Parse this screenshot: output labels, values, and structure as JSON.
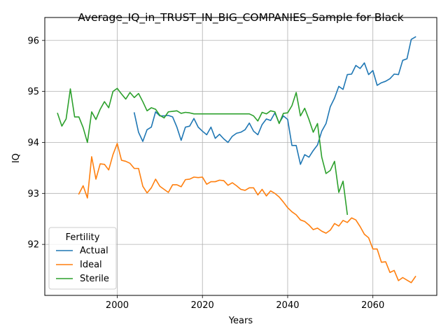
{
  "chart_data": {
    "type": "line",
    "title": "Average_IQ_in_TRUST_IN_BIG_COMPANIES_Sample for Black",
    "xlabel": "Years",
    "ylabel": "IQ",
    "xlim": [
      1983,
      2075
    ],
    "ylim": [
      91.0,
      96.45
    ],
    "xticks": [
      2000,
      2020,
      2040,
      2060
    ],
    "yticks": [
      92,
      93,
      94,
      95,
      96
    ],
    "grid": true,
    "legend": {
      "title": "Fertility",
      "placement": "lower-left"
    },
    "series": [
      {
        "name": "Actual",
        "color": "#1f77b4",
        "x": [
          2004,
          2005,
          2006,
          2007,
          2008,
          2009,
          2010,
          2011,
          2012,
          2013,
          2014,
          2015,
          2016,
          2017,
          2018,
          2019,
          2020,
          2021,
          2022,
          2023,
          2024,
          2025,
          2026,
          2027,
          2028,
          2029,
          2030,
          2031,
          2032,
          2033,
          2034,
          2035,
          2036,
          2037,
          2038,
          2039,
          2040,
          2041,
          2042,
          2043,
          2044,
          2045,
          2046,
          2047,
          2048,
          2049,
          2050,
          2051,
          2052,
          2053,
          2054,
          2055,
          2056,
          2057,
          2058,
          2059,
          2060,
          2061,
          2062,
          2063,
          2064,
          2065,
          2066,
          2067,
          2068,
          2069,
          2070
        ],
        "values": [
          94.58,
          94.2,
          94.02,
          94.25,
          94.3,
          94.6,
          94.52,
          94.52,
          94.53,
          94.5,
          94.3,
          94.04,
          94.3,
          94.32,
          94.47,
          94.3,
          94.22,
          94.15,
          94.3,
          94.08,
          94.16,
          94.07,
          94.0,
          94.12,
          94.18,
          94.2,
          94.25,
          94.38,
          94.22,
          94.15,
          94.35,
          94.46,
          94.43,
          94.58,
          94.38,
          94.52,
          94.45,
          93.94,
          93.94,
          93.57,
          93.76,
          93.71,
          93.84,
          93.95,
          94.22,
          94.37,
          94.7,
          94.87,
          95.1,
          95.04,
          95.33,
          95.34,
          95.51,
          95.45,
          95.56,
          95.33,
          95.41,
          95.12,
          95.17,
          95.2,
          95.25,
          95.34,
          95.33,
          95.61,
          95.64,
          96.02,
          96.07
        ]
      },
      {
        "name": "Ideal",
        "color": "#ff7f0e",
        "x": [
          1991,
          1992,
          1993,
          1994,
          1995,
          1996,
          1997,
          1998,
          1999,
          2000,
          2001,
          2002,
          2003,
          2004,
          2005,
          2006,
          2007,
          2008,
          2009,
          2010,
          2011,
          2012,
          2013,
          2014,
          2015,
          2016,
          2017,
          2018,
          2019,
          2020,
          2021,
          2022,
          2023,
          2024,
          2025,
          2026,
          2027,
          2028,
          2029,
          2030,
          2031,
          2032,
          2033,
          2034,
          2035,
          2036,
          2037,
          2038,
          2039,
          2040,
          2041,
          2042,
          2043,
          2044,
          2045,
          2046,
          2047,
          2048,
          2049,
          2050,
          2051,
          2052,
          2053,
          2054,
          2055,
          2056,
          2057,
          2058,
          2059,
          2060,
          2061,
          2062,
          2063,
          2064,
          2065,
          2066,
          2067,
          2068,
          2069,
          2070
        ],
        "values": [
          92.99,
          93.15,
          92.91,
          93.72,
          93.28,
          93.58,
          93.57,
          93.46,
          93.76,
          93.98,
          93.65,
          93.63,
          93.59,
          93.49,
          93.49,
          93.14,
          93.01,
          93.11,
          93.28,
          93.14,
          93.08,
          93.02,
          93.17,
          93.17,
          93.13,
          93.27,
          93.28,
          93.32,
          93.31,
          93.32,
          93.18,
          93.23,
          93.23,
          93.26,
          93.25,
          93.16,
          93.21,
          93.15,
          93.08,
          93.06,
          93.11,
          93.11,
          92.97,
          93.08,
          92.95,
          93.05,
          93.0,
          92.93,
          92.83,
          92.72,
          92.64,
          92.58,
          92.48,
          92.45,
          92.38,
          92.29,
          92.32,
          92.26,
          92.22,
          92.28,
          92.41,
          92.36,
          92.47,
          92.43,
          92.52,
          92.48,
          92.35,
          92.2,
          92.13,
          91.91,
          91.91,
          91.65,
          91.66,
          91.45,
          91.49,
          91.29,
          91.35,
          91.3,
          91.25,
          91.37
        ]
      },
      {
        "name": "Sterile",
        "color": "#2ca02c",
        "x": [
          1986,
          1987,
          1988,
          1989,
          1990,
          1991,
          1992,
          1993,
          1994,
          1995,
          1996,
          1997,
          1998,
          1999,
          2000,
          2001,
          2002,
          2003,
          2004,
          2005,
          2006,
          2007,
          2008,
          2009,
          2010,
          2011,
          2012,
          2013,
          2014,
          2015,
          2016,
          2017,
          2018,
          2019,
          2020,
          2021,
          2022,
          2023,
          2024,
          2025,
          2026,
          2027,
          2028,
          2029,
          2030,
          2031,
          2032,
          2033,
          2034,
          2035,
          2036,
          2037,
          2038,
          2039,
          2040,
          2041,
          2042,
          2043,
          2044,
          2045,
          2046,
          2047,
          2048,
          2049,
          2050,
          2051,
          2052,
          2053,
          2054
        ],
        "values": [
          94.57,
          94.32,
          94.46,
          95.05,
          94.5,
          94.5,
          94.29,
          94.0,
          94.6,
          94.45,
          94.65,
          94.8,
          94.68,
          95.0,
          95.06,
          94.95,
          94.85,
          94.98,
          94.88,
          94.96,
          94.8,
          94.62,
          94.68,
          94.65,
          94.53,
          94.48,
          94.6,
          94.61,
          94.62,
          94.57,
          94.59,
          94.58,
          94.56,
          94.56,
          94.56,
          94.56,
          94.56,
          94.56,
          94.56,
          94.56,
          94.56,
          94.56,
          94.56,
          94.56,
          94.56,
          94.56,
          94.52,
          94.42,
          94.59,
          94.56,
          94.62,
          94.6,
          94.37,
          94.57,
          94.58,
          94.72,
          94.98,
          94.52,
          94.67,
          94.45,
          94.2,
          94.37,
          93.71,
          93.39,
          93.45,
          93.63,
          93.02,
          93.24,
          92.59
        ]
      }
    ]
  }
}
